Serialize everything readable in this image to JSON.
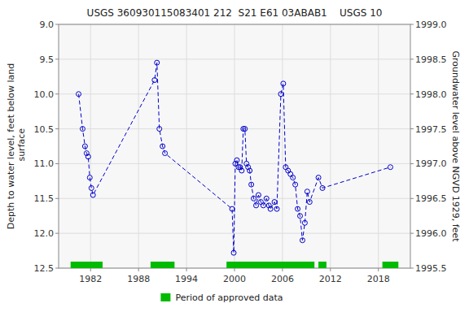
{
  "chart_data": {
    "type": "line",
    "title": "USGS 360930115083401 212  S21 E61 03ABAB1    USGS 10",
    "ylabel": "Depth to water level, feet below land\n surface",
    "y2label": "Groundwater level above NGVD 1929, feet",
    "xlim": [
      1978,
      2022
    ],
    "xticks": [
      1982,
      1988,
      1994,
      2000,
      2006,
      2012,
      2018
    ],
    "ylim": [
      12.5,
      9.0
    ],
    "yticks": [
      {
        "value": 9.0,
        "label": "9.0"
      },
      9.5,
      {
        "value": 10.0,
        "label": "10.0"
      },
      10.5,
      {
        "value": 11.0,
        "label": "11.0"
      },
      11.5,
      {
        "value": 12.0,
        "label": "12.0"
      },
      12.5
    ],
    "y2lim": [
      1995.5,
      1999.0
    ],
    "y2ticks": [
      {
        "value": 1999.0,
        "label": "1999.0"
      },
      1998.5,
      {
        "value": 1998.0,
        "label": "1998.0"
      },
      1997.5,
      {
        "value": 1997.0,
        "label": "1997.0"
      },
      1996.5,
      {
        "value": 1996.0,
        "label": "1996.0"
      },
      1995.5
    ],
    "grid": true,
    "legend": "bottom",
    "x": [
      1980.5,
      1981.0,
      1981.3,
      1981.5,
      1981.7,
      1981.9,
      1982.1,
      1982.3,
      1990.0,
      1990.3,
      1990.6,
      1991.0,
      1991.3,
      1999.7,
      1999.9,
      2000.1,
      2000.3,
      2000.5,
      2000.7,
      2000.9,
      2001.1,
      2001.3,
      2001.5,
      2001.7,
      2001.9,
      2002.1,
      2002.4,
      2002.7,
      2003.0,
      2003.3,
      2003.6,
      2004.0,
      2004.3,
      2004.5,
      2005.0,
      2005.3,
      2005.8,
      2006.1,
      2006.4,
      2006.7,
      2007.0,
      2007.3,
      2007.6,
      2007.9,
      2008.2,
      2008.5,
      2008.8,
      2009.1,
      2009.4,
      2010.5,
      2011.0,
      2019.5
    ],
    "series": [
      {
        "type": "line",
        "color": "#0000cc",
        "marker": "circle",
        "line_style": "dashed",
        "values": [
          10.0,
          10.5,
          10.75,
          10.85,
          10.9,
          11.2,
          11.35,
          11.45,
          9.8,
          9.55,
          10.5,
          10.75,
          10.85,
          11.65,
          12.28,
          11.0,
          10.95,
          11.05,
          11.05,
          11.1,
          10.5,
          10.5,
          11.0,
          11.05,
          11.1,
          11.3,
          11.5,
          11.6,
          11.45,
          11.55,
          11.6,
          11.5,
          11.6,
          11.65,
          11.55,
          11.65,
          10.0,
          9.85,
          11.05,
          11.1,
          11.15,
          11.2,
          11.3,
          11.65,
          11.75,
          12.1,
          11.85,
          11.4,
          11.55,
          11.2,
          11.35,
          11.05
        ]
      },
      {
        "type": "period",
        "name": "Period of approved data",
        "color": "#00bb00",
        "periods": [
          [
            1979.5,
            1983.5
          ],
          [
            1989.5,
            1992.5
          ],
          [
            1999.0,
            2010.0
          ],
          [
            2010.5,
            2011.5
          ],
          [
            2018.5,
            2020.5
          ]
        ]
      }
    ]
  }
}
